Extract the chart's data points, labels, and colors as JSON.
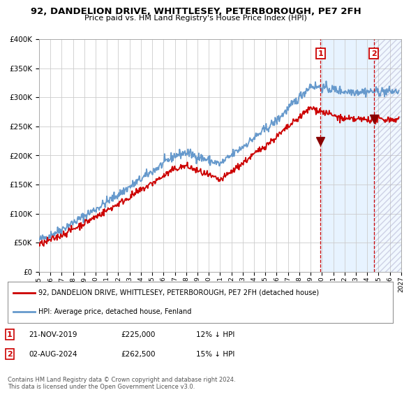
{
  "title": "92, DANDELION DRIVE, WHITTLESEY, PETERBOROUGH, PE7 2FH",
  "subtitle": "Price paid vs. HM Land Registry's House Price Index (HPI)",
  "ylim": [
    0,
    400000
  ],
  "yticks": [
    0,
    50000,
    100000,
    150000,
    200000,
    250000,
    300000,
    350000,
    400000
  ],
  "ytick_labels": [
    "£0",
    "£50K",
    "£100K",
    "£150K",
    "£200K",
    "£250K",
    "£300K",
    "£350K",
    "£400K"
  ],
  "hpi_color": "#6699cc",
  "price_color": "#cc0000",
  "sale1_year": 2019.88,
  "sale1_price": 225000,
  "sale2_year": 2024.58,
  "sale2_price": 262500,
  "sale1_pct": "12% ↓ HPI",
  "sale2_pct": "15% ↓ HPI",
  "sale1_date": "21-NOV-2019",
  "sale2_date": "02-AUG-2024",
  "legend_property": "92, DANDELION DRIVE, WHITTLESEY, PETERBOROUGH, PE7 2FH (detached house)",
  "legend_hpi": "HPI: Average price, detached house, Fenland",
  "footer": "Contains HM Land Registry data © Crown copyright and database right 2024.\nThis data is licensed under the Open Government Licence v3.0.",
  "bg_color": "#ffffff",
  "grid_color": "#cccccc",
  "shade_color": "#ddeeff",
  "xlim_start": 1995,
  "xlim_end": 2027
}
